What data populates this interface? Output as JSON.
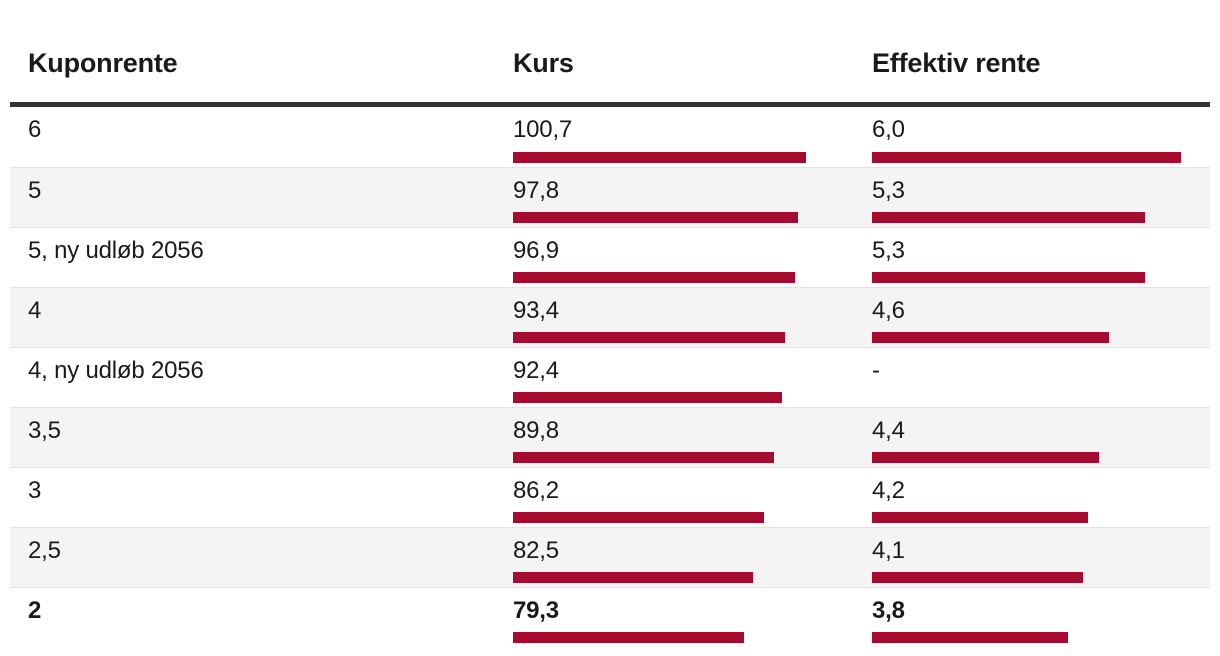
{
  "header": {
    "col1": "Kuponrente",
    "col2": "Kurs",
    "col3": "Effektiv rente"
  },
  "table": {
    "rows": [
      {
        "label": "6",
        "kurs": "100,7",
        "kurs_value": 100.7,
        "effektiv": "6,0",
        "effektiv_value": 6.0,
        "bold": false
      },
      {
        "label": "5",
        "kurs": "97,8",
        "kurs_value": 97.8,
        "effektiv": "5,3",
        "effektiv_value": 5.3,
        "bold": false
      },
      {
        "label": "5, ny udløb 2056",
        "kurs": "96,9",
        "kurs_value": 96.9,
        "effektiv": "5,3",
        "effektiv_value": 5.3,
        "bold": false
      },
      {
        "label": "4",
        "kurs": "93,4",
        "kurs_value": 93.4,
        "effektiv": "4,6",
        "effektiv_value": 4.6,
        "bold": false
      },
      {
        "label": "4, ny udløb 2056",
        "kurs": "92,4",
        "kurs_value": 92.4,
        "effektiv": "-",
        "effektiv_value": null,
        "bold": false
      },
      {
        "label": "3,5",
        "kurs": "89,8",
        "kurs_value": 89.8,
        "effektiv": "4,4",
        "effektiv_value": 4.4,
        "bold": false
      },
      {
        "label": "3",
        "kurs": "86,2",
        "kurs_value": 86.2,
        "effektiv": "4,2",
        "effektiv_value": 4.2,
        "bold": false
      },
      {
        "label": "2,5",
        "kurs": "82,5",
        "kurs_value": 82.5,
        "effektiv": "4,1",
        "effektiv_value": 4.1,
        "bold": false
      },
      {
        "label": "2",
        "kurs": "79,3",
        "kurs_value": 79.3,
        "effektiv": "3,8",
        "effektiv_value": 3.8,
        "bold": true
      }
    ]
  },
  "chart_data": {
    "type": "table",
    "title": "",
    "columns": [
      "Kuponrente",
      "Kurs",
      "Effektiv rente"
    ],
    "categories": [
      "6",
      "5",
      "5, ny udløb 2056",
      "4",
      "4, ny udløb 2056",
      "3,5",
      "3",
      "2,5",
      "2"
    ],
    "series": [
      {
        "name": "Kurs",
        "values": [
          100.7,
          97.8,
          96.9,
          93.4,
          92.4,
          89.8,
          86.2,
          82.5,
          79.3
        ]
      },
      {
        "name": "Effektiv rente",
        "values": [
          6.0,
          5.3,
          5.3,
          4.6,
          null,
          4.4,
          4.2,
          4.1,
          3.8
        ]
      }
    ],
    "layout_hints": {
      "bars": "horizontal in-cell bars, each column scaled to its own max value",
      "missing_value_marker": "-",
      "zebra_striping": true
    }
  },
  "colors": {
    "bar": "#a60a2e",
    "header_rule": "#333333",
    "row_alt": "#f4f4f4",
    "row_border": "#e2e2e2",
    "text": "#1a1a1a"
  }
}
